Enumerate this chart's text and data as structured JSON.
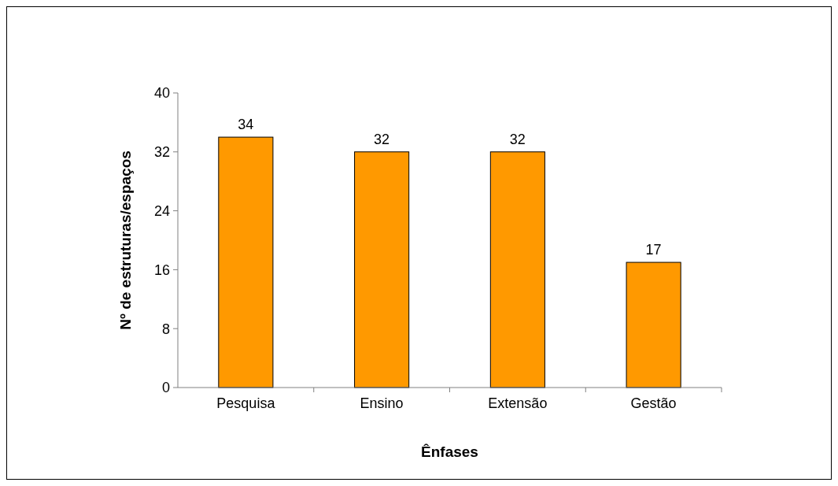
{
  "chart_data": {
    "type": "bar",
    "xlabel": "Ênfases",
    "ylabel": "Nº de estruturas/espaços",
    "categories": [
      "Pesquisa",
      "Ensino",
      "Extensão",
      "Gestão"
    ],
    "values": [
      34,
      32,
      32,
      17
    ],
    "color": "#ff9900",
    "ylim": [
      0,
      40
    ],
    "yticks": [
      0,
      8,
      16,
      24,
      32,
      40
    ],
    "grid": false,
    "data_labels": true
  }
}
